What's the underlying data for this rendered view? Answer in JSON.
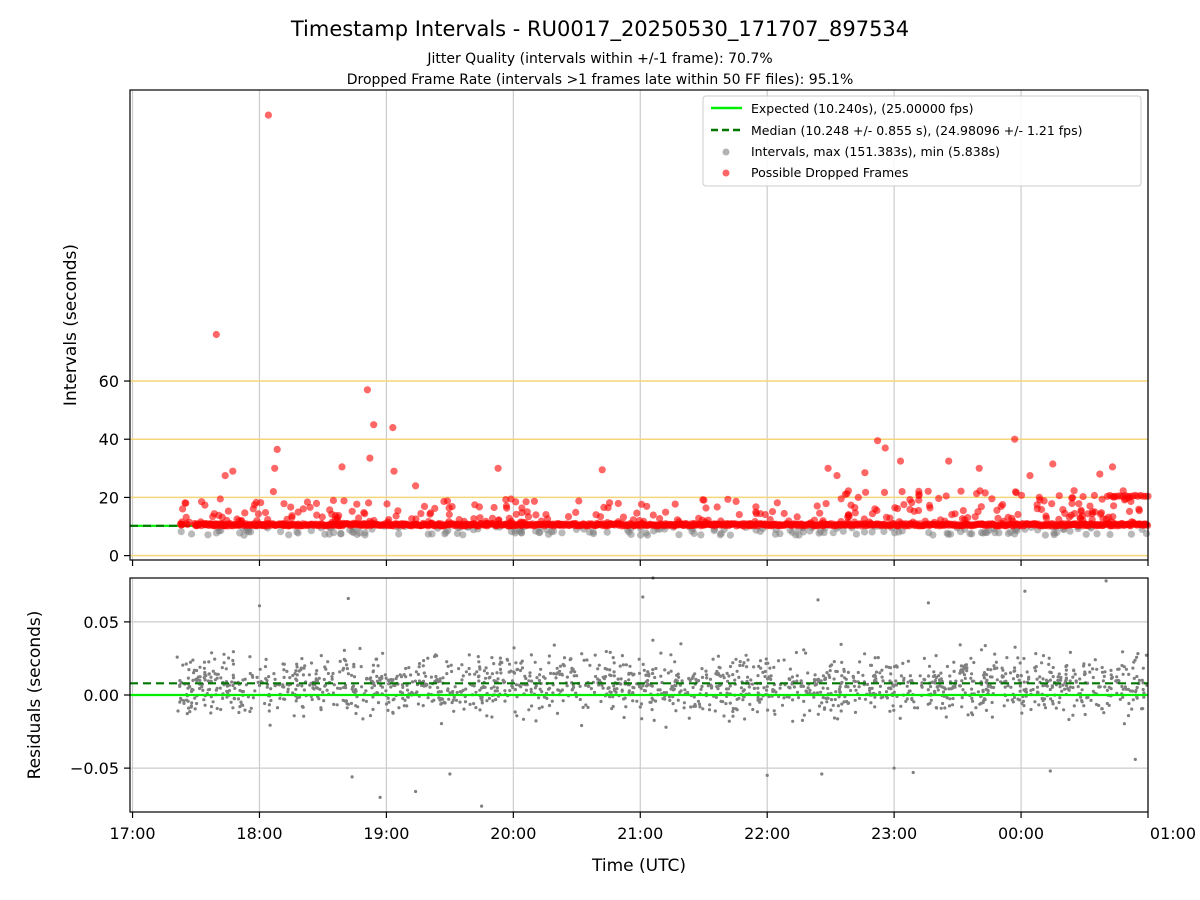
{
  "chart_data": {
    "type": "scatter",
    "title": "Timestamp Intervals - RU0017_20250530_171707_897534",
    "subtitle_lines": [
      "Jitter Quality (intervals within +/-1 frame): 70.7%",
      "Dropped Frame Rate (intervals >1 frames late within 50 FF files): 95.1%"
    ],
    "xlabel": "Time (UTC)",
    "x_ticks": [
      "17:00",
      "18:00",
      "19:00",
      "20:00",
      "21:00",
      "22:00",
      "23:00",
      "00:00",
      "01:00"
    ],
    "x_range_hours": [
      16.98,
      25.0
    ],
    "colors": {
      "expected": "#00ee00",
      "median": "#007700",
      "intervals": "#808080",
      "dropped": "#ff0000",
      "hlines": "#f5d67a",
      "grid": "#cccccc"
    },
    "top_panel": {
      "ylabel": "Intervals (seconds)",
      "y_ticks": [
        "0",
        "20",
        "40",
        "60"
      ],
      "y_tick_values": [
        0,
        20,
        40,
        60
      ],
      "ylim": [
        -1.5,
        160
      ],
      "hlines": [
        0,
        20,
        40,
        60
      ],
      "expected_value": 10.24,
      "median_value": 10.248,
      "intervals_max": 151.383,
      "intervals_min": 5.838,
      "outliers": [
        {
          "t": 18.07,
          "v": 151.383
        },
        {
          "t": 17.66,
          "v": 76.0
        },
        {
          "t": 18.85,
          "v": 57.0
        },
        {
          "t": 18.9,
          "v": 45.0
        },
        {
          "t": 19.05,
          "v": 44.0
        },
        {
          "t": 22.87,
          "v": 39.5
        },
        {
          "t": 23.95,
          "v": 40.0
        },
        {
          "t": 22.93,
          "v": 37.0
        },
        {
          "t": 18.14,
          "v": 36.5
        },
        {
          "t": 18.87,
          "v": 33.5
        },
        {
          "t": 23.05,
          "v": 32.5
        },
        {
          "t": 23.43,
          "v": 32.5
        },
        {
          "t": 24.25,
          "v": 31.5
        },
        {
          "t": 24.72,
          "v": 30.5
        },
        {
          "t": 18.65,
          "v": 30.5
        },
        {
          "t": 22.48,
          "v": 30.0
        },
        {
          "t": 18.12,
          "v": 30.0
        },
        {
          "t": 19.88,
          "v": 30.0
        },
        {
          "t": 23.67,
          "v": 30.0
        },
        {
          "t": 20.7,
          "v": 29.5
        },
        {
          "t": 19.06,
          "v": 29.0
        },
        {
          "t": 17.79,
          "v": 29.0
        },
        {
          "t": 22.77,
          "v": 28.5
        },
        {
          "t": 24.62,
          "v": 28.0
        },
        {
          "t": 24.07,
          "v": 27.5
        },
        {
          "t": 22.55,
          "v": 27.5
        },
        {
          "t": 17.73,
          "v": 27.5
        },
        {
          "t": 19.23,
          "v": 24.0
        },
        {
          "t": 18.11,
          "v": 22.0
        }
      ]
    },
    "bottom_panel": {
      "ylabel": "Residuals (seconds)",
      "y_ticks": [
        "0.05",
        "0.00",
        "−0.05"
      ],
      "y_tick_values": [
        0.05,
        0.0,
        -0.05
      ],
      "ylim": [
        -0.08,
        0.08
      ],
      "expected_value": 0.0,
      "median_value": 0.008,
      "outliers": [
        {
          "t": 18.0,
          "v": 0.061
        },
        {
          "t": 18.7,
          "v": 0.066
        },
        {
          "t": 21.02,
          "v": 0.067
        },
        {
          "t": 21.1,
          "v": 0.08
        },
        {
          "t": 21.32,
          "v": 0.035
        },
        {
          "t": 22.4,
          "v": 0.065
        },
        {
          "t": 23.27,
          "v": 0.063
        },
        {
          "t": 24.03,
          "v": 0.071
        },
        {
          "t": 24.67,
          "v": 0.078
        },
        {
          "t": 19.75,
          "v": -0.076
        },
        {
          "t": 19.5,
          "v": -0.054
        },
        {
          "t": 19.23,
          "v": -0.066
        },
        {
          "t": 18.73,
          "v": -0.056
        },
        {
          "t": 18.95,
          "v": -0.07
        },
        {
          "t": 22.0,
          "v": -0.055
        },
        {
          "t": 22.43,
          "v": -0.054
        },
        {
          "t": 23.0,
          "v": -0.05
        },
        {
          "t": 23.15,
          "v": -0.053
        },
        {
          "t": 24.23,
          "v": -0.052
        },
        {
          "t": 24.9,
          "v": -0.044
        }
      ]
    },
    "legend": {
      "location": "upper right",
      "items": [
        {
          "label": "Expected (10.240s), (25.00000 fps)",
          "kind": "solid-line",
          "color_key": "expected"
        },
        {
          "label": "Median (10.248 +/- 0.855 s), (24.98096 +/- 1.21 fps)",
          "kind": "dashed-line",
          "color_key": "median"
        },
        {
          "label": "Intervals, max (151.383s), min (5.838s)",
          "kind": "dot",
          "color_key": "intervals"
        },
        {
          "label": "Possible Dropped Frames",
          "kind": "dot",
          "color_key": "dropped"
        }
      ]
    }
  }
}
